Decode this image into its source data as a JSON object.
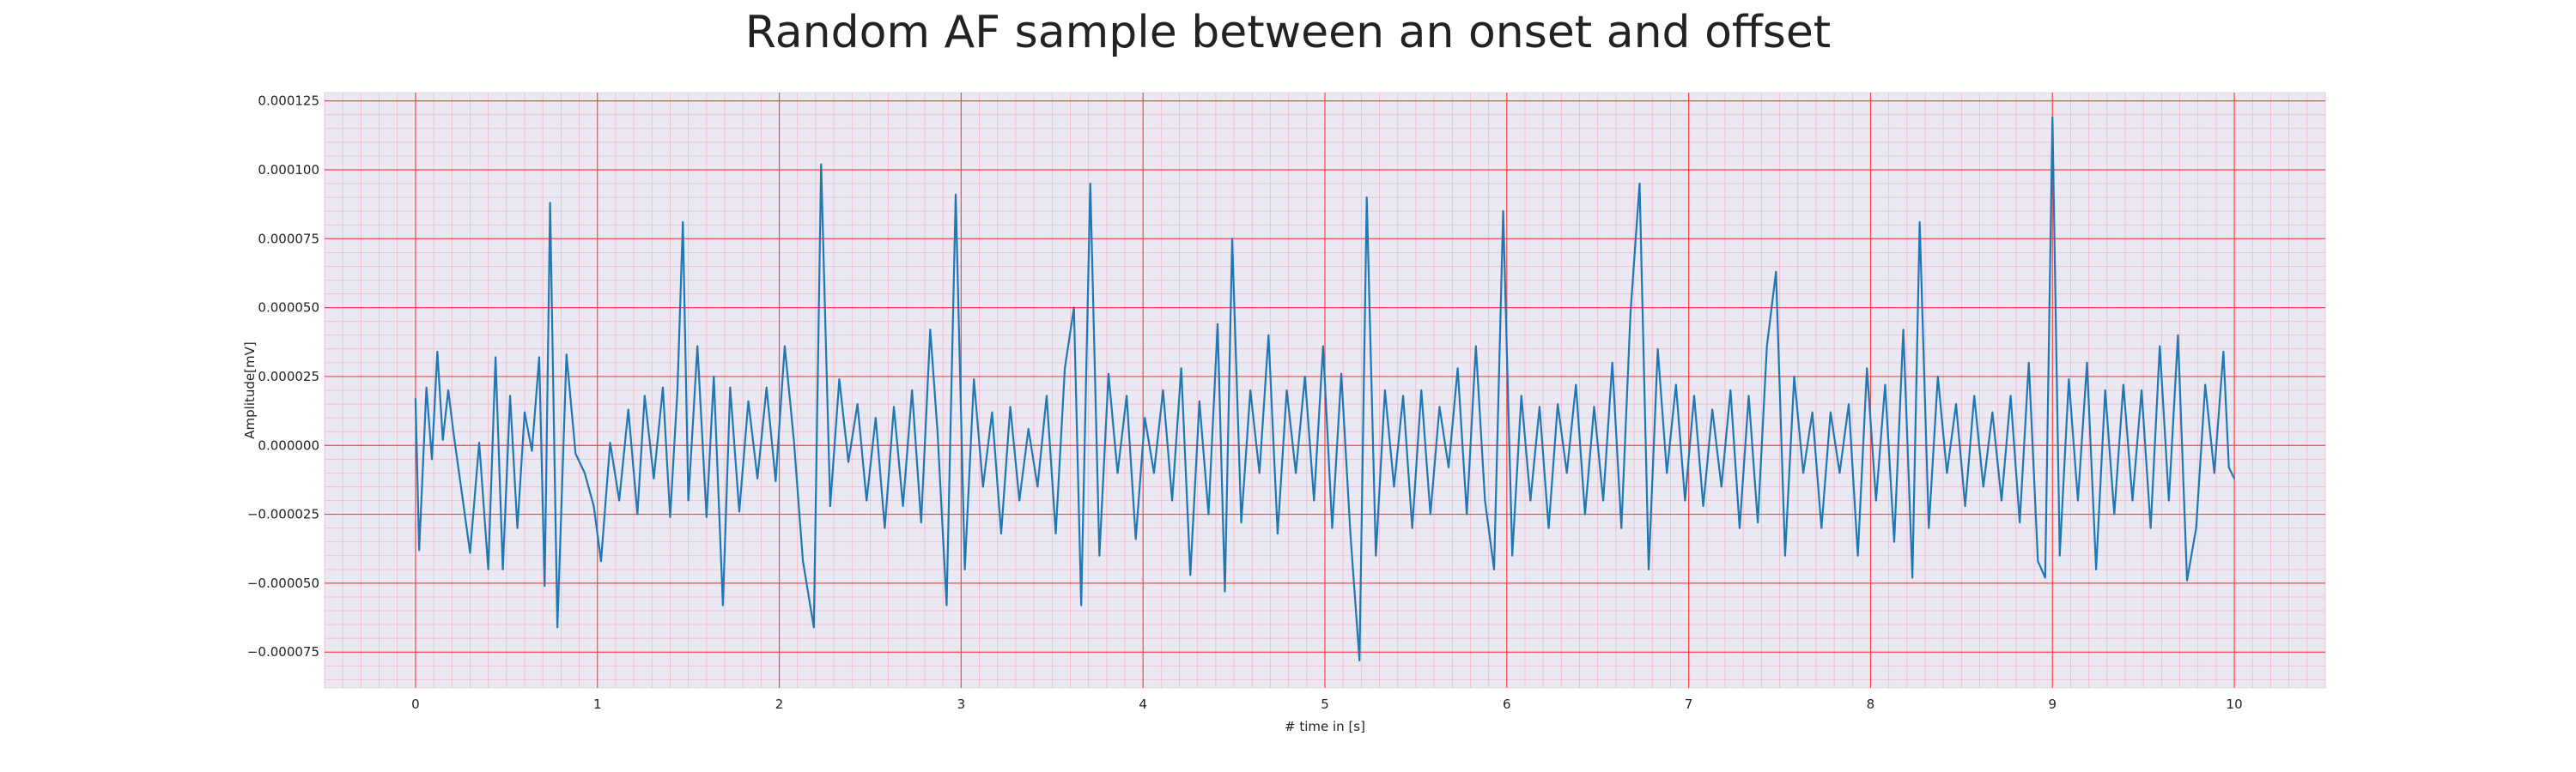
{
  "chart_data": {
    "type": "line",
    "title": "Random AF sample between an onset and offset",
    "xlabel": "# time in [s]",
    "ylabel": "Amplitude[mV]",
    "xlim": [
      -0.5,
      10.5
    ],
    "ylim": [
      -8.8e-05,
      0.000128
    ],
    "x_ticks": [
      0,
      1,
      2,
      3,
      4,
      5,
      6,
      7,
      8,
      9,
      10
    ],
    "x_tick_labels": [
      "0",
      "1",
      "2",
      "3",
      "4",
      "5",
      "6",
      "7",
      "8",
      "9",
      "10"
    ],
    "y_ticks": [
      -7.5e-05,
      -5e-05,
      -2.5e-05,
      0,
      2.5e-05,
      5e-05,
      7.5e-05,
      0.0001,
      0.000125
    ],
    "y_tick_labels": [
      "−0.000075",
      "−0.000050",
      "−0.000025",
      "0.000000",
      "0.000025",
      "0.000050",
      "0.000075",
      "0.000100",
      "0.000125"
    ],
    "grid": true,
    "legend": "none",
    "colors": {
      "line": "#1f77b4",
      "plot_bg": "#eae8f2",
      "major_grid": "#ff4444",
      "minor_grid": "#f5b8c4",
      "border": "#dddddd"
    },
    "series": [
      {
        "values": [
          [
            0.0,
            1.7e-05
          ],
          [
            0.02,
            -3.8e-05
          ],
          [
            0.06,
            2.1e-05
          ],
          [
            0.09,
            -5e-06
          ],
          [
            0.12,
            3.4e-05
          ],
          [
            0.15,
            2e-06
          ],
          [
            0.18,
            2e-05
          ],
          [
            0.21,
            4e-06
          ],
          [
            0.25,
            -1.5e-05
          ],
          [
            0.3,
            -3.9e-05
          ],
          [
            0.35,
            1e-06
          ],
          [
            0.4,
            -4.5e-05
          ],
          [
            0.44,
            3.2e-05
          ],
          [
            0.48,
            -4.5e-05
          ],
          [
            0.52,
            1.8e-05
          ],
          [
            0.56,
            -3e-05
          ],
          [
            0.6,
            1.2e-05
          ],
          [
            0.64,
            -2e-06
          ],
          [
            0.68,
            3.2e-05
          ],
          [
            0.71,
            -5.1e-05
          ],
          [
            0.74,
            8.8e-05
          ],
          [
            0.78,
            -6.6e-05
          ],
          [
            0.83,
            3.3e-05
          ],
          [
            0.88,
            -3e-06
          ],
          [
            0.93,
            -1e-05
          ],
          [
            0.98,
            -2.2e-05
          ],
          [
            1.02,
            -4.2e-05
          ],
          [
            1.07,
            1e-06
          ],
          [
            1.12,
            -2e-05
          ],
          [
            1.17,
            1.3e-05
          ],
          [
            1.22,
            -2.5e-05
          ],
          [
            1.26,
            1.8e-05
          ],
          [
            1.31,
            -1.2e-05
          ],
          [
            1.36,
            2.1e-05
          ],
          [
            1.4,
            -2.6e-05
          ],
          [
            1.44,
            2e-05
          ],
          [
            1.47,
            8.1e-05
          ],
          [
            1.5,
            -2e-05
          ],
          [
            1.55,
            3.6e-05
          ],
          [
            1.6,
            -2.6e-05
          ],
          [
            1.64,
            2.5e-05
          ],
          [
            1.69,
            -5.8e-05
          ],
          [
            1.73,
            2.1e-05
          ],
          [
            1.78,
            -2.4e-05
          ],
          [
            1.83,
            1.6e-05
          ],
          [
            1.88,
            -1.2e-05
          ],
          [
            1.93,
            2.1e-05
          ],
          [
            1.98,
            -1.3e-05
          ],
          [
            2.03,
            3.6e-05
          ],
          [
            2.08,
            2e-06
          ],
          [
            2.13,
            -4.2e-05
          ],
          [
            2.19,
            -6.6e-05
          ],
          [
            2.23,
            0.000102
          ],
          [
            2.28,
            -2.2e-05
          ],
          [
            2.33,
            2.4e-05
          ],
          [
            2.38,
            -6e-06
          ],
          [
            2.43,
            1.5e-05
          ],
          [
            2.48,
            -2e-05
          ],
          [
            2.53,
            1e-05
          ],
          [
            2.58,
            -3e-05
          ],
          [
            2.63,
            1.4e-05
          ],
          [
            2.68,
            -2.2e-05
          ],
          [
            2.73,
            2e-05
          ],
          [
            2.78,
            -2.8e-05
          ],
          [
            2.83,
            4.2e-05
          ],
          [
            2.87,
            5e-06
          ],
          [
            2.92,
            -5.8e-05
          ],
          [
            2.97,
            9.1e-05
          ],
          [
            3.02,
            -4.5e-05
          ],
          [
            3.07,
            2.4e-05
          ],
          [
            3.12,
            -1.5e-05
          ],
          [
            3.17,
            1.2e-05
          ],
          [
            3.22,
            -3.2e-05
          ],
          [
            3.27,
            1.4e-05
          ],
          [
            3.32,
            -2e-05
          ],
          [
            3.37,
            6e-06
          ],
          [
            3.42,
            -1.5e-05
          ],
          [
            3.47,
            1.8e-05
          ],
          [
            3.52,
            -3.2e-05
          ],
          [
            3.57,
            2.8e-05
          ],
          [
            3.62,
            5e-05
          ],
          [
            3.66,
            -5.8e-05
          ],
          [
            3.71,
            9.5e-05
          ],
          [
            3.76,
            -4e-05
          ],
          [
            3.81,
            2.6e-05
          ],
          [
            3.86,
            -1e-05
          ],
          [
            3.91,
            1.8e-05
          ],
          [
            3.96,
            -3.4e-05
          ],
          [
            4.01,
            1e-05
          ],
          [
            4.06,
            -1e-05
          ],
          [
            4.11,
            2e-05
          ],
          [
            4.16,
            -2e-05
          ],
          [
            4.21,
            2.8e-05
          ],
          [
            4.26,
            -4.7e-05
          ],
          [
            4.31,
            1.6e-05
          ],
          [
            4.36,
            -2.5e-05
          ],
          [
            4.41,
            4.4e-05
          ],
          [
            4.45,
            -5.3e-05
          ],
          [
            4.49,
            7.5e-05
          ],
          [
            4.54,
            -2.8e-05
          ],
          [
            4.59,
            2e-05
          ],
          [
            4.64,
            -1e-05
          ],
          [
            4.69,
            4e-05
          ],
          [
            4.74,
            -3.2e-05
          ],
          [
            4.79,
            2e-05
          ],
          [
            4.84,
            -1e-05
          ],
          [
            4.89,
            2.5e-05
          ],
          [
            4.94,
            -2e-05
          ],
          [
            4.99,
            3.6e-05
          ],
          [
            5.04,
            -3e-05
          ],
          [
            5.09,
            2.6e-05
          ],
          [
            5.14,
            -3.2e-05
          ],
          [
            5.19,
            -7.8e-05
          ],
          [
            5.23,
            9e-05
          ],
          [
            5.28,
            -4e-05
          ],
          [
            5.33,
            2e-05
          ],
          [
            5.38,
            -1.5e-05
          ],
          [
            5.43,
            1.8e-05
          ],
          [
            5.48,
            -3e-05
          ],
          [
            5.53,
            2e-05
          ],
          [
            5.58,
            -2.5e-05
          ],
          [
            5.63,
            1.4e-05
          ],
          [
            5.68,
            -8e-06
          ],
          [
            5.73,
            2.8e-05
          ],
          [
            5.78,
            -2.5e-05
          ],
          [
            5.83,
            3.6e-05
          ],
          [
            5.88,
            -2e-05
          ],
          [
            5.93,
            -4.5e-05
          ],
          [
            5.98,
            8.5e-05
          ],
          [
            6.03,
            -4e-05
          ],
          [
            6.08,
            1.8e-05
          ],
          [
            6.13,
            -2e-05
          ],
          [
            6.18,
            1.4e-05
          ],
          [
            6.23,
            -3e-05
          ],
          [
            6.28,
            1.5e-05
          ],
          [
            6.33,
            -1e-05
          ],
          [
            6.38,
            2.2e-05
          ],
          [
            6.43,
            -2.5e-05
          ],
          [
            6.48,
            1.4e-05
          ],
          [
            6.53,
            -2e-05
          ],
          [
            6.58,
            3e-05
          ],
          [
            6.63,
            -3e-05
          ],
          [
            6.68,
            4.8e-05
          ],
          [
            6.73,
            9.5e-05
          ],
          [
            6.78,
            -4.5e-05
          ],
          [
            6.83,
            3.5e-05
          ],
          [
            6.88,
            -1e-05
          ],
          [
            6.93,
            2.2e-05
          ],
          [
            6.98,
            -2e-05
          ],
          [
            7.03,
            1.8e-05
          ],
          [
            7.08,
            -2.2e-05
          ],
          [
            7.13,
            1.3e-05
          ],
          [
            7.18,
            -1.5e-05
          ],
          [
            7.23,
            2e-05
          ],
          [
            7.28,
            -3e-05
          ],
          [
            7.33,
            1.8e-05
          ],
          [
            7.38,
            -2.8e-05
          ],
          [
            7.43,
            3.6e-05
          ],
          [
            7.48,
            6.3e-05
          ],
          [
            7.53,
            -4e-05
          ],
          [
            7.58,
            2.5e-05
          ],
          [
            7.63,
            -1e-05
          ],
          [
            7.68,
            1.2e-05
          ],
          [
            7.73,
            -3e-05
          ],
          [
            7.78,
            1.2e-05
          ],
          [
            7.83,
            -1e-05
          ],
          [
            7.88,
            1.5e-05
          ],
          [
            7.93,
            -4e-05
          ],
          [
            7.98,
            2.8e-05
          ],
          [
            8.03,
            -2e-05
          ],
          [
            8.08,
            2.2e-05
          ],
          [
            8.13,
            -3.5e-05
          ],
          [
            8.18,
            4.2e-05
          ],
          [
            8.23,
            -4.8e-05
          ],
          [
            8.27,
            8.1e-05
          ],
          [
            8.32,
            -3e-05
          ],
          [
            8.37,
            2.5e-05
          ],
          [
            8.42,
            -1e-05
          ],
          [
            8.47,
            1.5e-05
          ],
          [
            8.52,
            -2.2e-05
          ],
          [
            8.57,
            1.8e-05
          ],
          [
            8.62,
            -1.5e-05
          ],
          [
            8.67,
            1.2e-05
          ],
          [
            8.72,
            -2e-05
          ],
          [
            8.77,
            1.8e-05
          ],
          [
            8.82,
            -2.8e-05
          ],
          [
            8.87,
            3e-05
          ],
          [
            8.92,
            -4.2e-05
          ],
          [
            8.96,
            -4.8e-05
          ],
          [
            9.0,
            0.000119
          ],
          [
            9.04,
            -4e-05
          ],
          [
            9.09,
            2.4e-05
          ],
          [
            9.14,
            -2e-05
          ],
          [
            9.19,
            3e-05
          ],
          [
            9.24,
            -4.5e-05
          ],
          [
            9.29,
            2e-05
          ],
          [
            9.34,
            -2.5e-05
          ],
          [
            9.39,
            2.2e-05
          ],
          [
            9.44,
            -2e-05
          ],
          [
            9.49,
            2e-05
          ],
          [
            9.54,
            -3e-05
          ],
          [
            9.59,
            3.6e-05
          ],
          [
            9.64,
            -2e-05
          ],
          [
            9.69,
            4e-05
          ],
          [
            9.74,
            -4.9e-05
          ],
          [
            9.79,
            -3e-05
          ],
          [
            9.84,
            2.2e-05
          ],
          [
            9.89,
            -1e-05
          ],
          [
            9.94,
            3.4e-05
          ],
          [
            9.97,
            -8e-06
          ],
          [
            10.0,
            -1.2e-05
          ]
        ]
      }
    ]
  }
}
